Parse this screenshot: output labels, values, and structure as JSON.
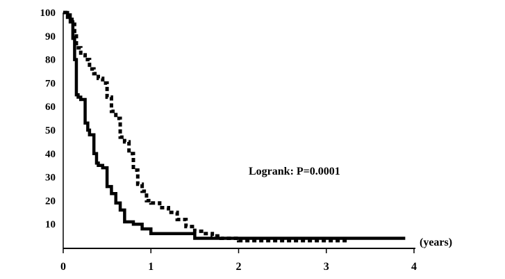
{
  "chart_data": {
    "type": "line",
    "xlim": [
      0,
      4
    ],
    "ylim": [
      0,
      100
    ],
    "x_ticks": [
      "0",
      "1",
      "2",
      "3",
      "4"
    ],
    "y_ticks": [
      "10",
      "20",
      "30",
      "40",
      "50",
      "60",
      "70",
      "80",
      "90",
      "100"
    ],
    "x_unit_label": "(years)",
    "annotation": "Logrank: P=0.0001",
    "grid": false,
    "series": [
      {
        "style": "solid",
        "color": "#000000",
        "x": [
          0,
          0.05,
          0.08,
          0.11,
          0.13,
          0.15,
          0.17,
          0.2,
          0.25,
          0.28,
          0.3,
          0.35,
          0.38,
          0.4,
          0.45,
          0.5,
          0.55,
          0.6,
          0.65,
          0.7,
          0.75,
          0.8,
          0.9,
          1.0,
          1.1,
          1.3,
          1.5,
          1.6,
          1.7,
          2.0,
          2.5,
          3.0,
          3.5,
          3.9
        ],
        "y": [
          100,
          99,
          96,
          89,
          80,
          65,
          64,
          63,
          53,
          50,
          48,
          40,
          36,
          35,
          34,
          26,
          23,
          19,
          16,
          11,
          11,
          10,
          8,
          6,
          6,
          6,
          4,
          4,
          4,
          4,
          4,
          4,
          4,
          4
        ]
      },
      {
        "style": "dashed",
        "color": "#000000",
        "x": [
          0,
          0.05,
          0.1,
          0.13,
          0.15,
          0.2,
          0.25,
          0.3,
          0.35,
          0.4,
          0.45,
          0.5,
          0.55,
          0.6,
          0.65,
          0.7,
          0.75,
          0.8,
          0.85,
          0.9,
          0.95,
          1.0,
          1.1,
          1.2,
          1.3,
          1.4,
          1.5,
          1.6,
          1.7,
          1.8,
          2.0,
          2.5,
          3.0,
          3.25
        ],
        "y": [
          100,
          98,
          95,
          90,
          85,
          82,
          80,
          76,
          74,
          72,
          70,
          64,
          58,
          55,
          47,
          45,
          40,
          33,
          27,
          24,
          20,
          19,
          17,
          15,
          12,
          9,
          7,
          6,
          5,
          4,
          3,
          3,
          3,
          3
        ]
      }
    ]
  }
}
